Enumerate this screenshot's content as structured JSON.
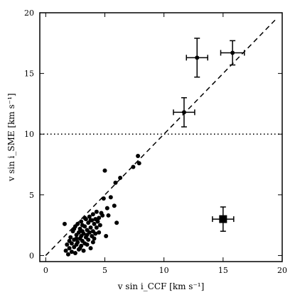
{
  "chart_data": {
    "type": "scatter",
    "title": "",
    "xlabel": "v sin i_CCF [km s⁻¹]",
    "ylabel": "v sin i_SME [km s⁻¹]",
    "xlim": [
      -0.5,
      20
    ],
    "ylim": [
      -0.5,
      20
    ],
    "x_ticks": [
      "0",
      "5",
      "10",
      "15",
      "20"
    ],
    "y_ticks": [
      "0",
      "5",
      "10",
      "15",
      "20"
    ],
    "grid": false,
    "legend": "none",
    "reference_lines": [
      {
        "kind": "one-to-one",
        "style": "dashed"
      },
      {
        "kind": "horizontal",
        "y": 10,
        "style": "dotted"
      }
    ],
    "colors": {
      "points": "#000000",
      "axes": "#000000"
    },
    "points": [
      {
        "x": 1.6,
        "y": 2.6
      },
      {
        "x": 1.7,
        "y": 0.4
      },
      {
        "x": 1.8,
        "y": 0.9
      },
      {
        "x": 1.9,
        "y": 0.1
      },
      {
        "x": 2.0,
        "y": 1.2
      },
      {
        "x": 2.0,
        "y": 0.6
      },
      {
        "x": 2.1,
        "y": 1.5
      },
      {
        "x": 2.2,
        "y": 0.3
      },
      {
        "x": 2.2,
        "y": 1.0
      },
      {
        "x": 2.3,
        "y": 2.0
      },
      {
        "x": 2.4,
        "y": 0.7
      },
      {
        "x": 2.4,
        "y": 1.3
      },
      {
        "x": 2.5,
        "y": 2.4
      },
      {
        "x": 2.5,
        "y": 0.2
      },
      {
        "x": 2.6,
        "y": 1.7
      },
      {
        "x": 2.6,
        "y": 0.9
      },
      {
        "x": 2.7,
        "y": 1.1
      },
      {
        "x": 2.7,
        "y": 2.6
      },
      {
        "x": 2.8,
        "y": 0.5
      },
      {
        "x": 2.8,
        "y": 1.9
      },
      {
        "x": 2.9,
        "y": 1.4
      },
      {
        "x": 2.9,
        "y": 2.2
      },
      {
        "x": 3.0,
        "y": 0.8
      },
      {
        "x": 3.0,
        "y": 1.6
      },
      {
        "x": 3.0,
        "y": 2.8
      },
      {
        "x": 3.1,
        "y": 1.2
      },
      {
        "x": 3.1,
        "y": 2.0
      },
      {
        "x": 3.2,
        "y": 1.8
      },
      {
        "x": 3.2,
        "y": 0.4
      },
      {
        "x": 3.3,
        "y": 2.4
      },
      {
        "x": 3.3,
        "y": 1.0
      },
      {
        "x": 3.4,
        "y": 3.0
      },
      {
        "x": 3.4,
        "y": 1.5
      },
      {
        "x": 3.5,
        "y": 2.1
      },
      {
        "x": 3.5,
        "y": 0.9
      },
      {
        "x": 3.6,
        "y": 2.7
      },
      {
        "x": 3.6,
        "y": 1.3
      },
      {
        "x": 3.7,
        "y": 3.2
      },
      {
        "x": 3.7,
        "y": 1.9
      },
      {
        "x": 3.8,
        "y": 2.3
      },
      {
        "x": 3.8,
        "y": 0.6
      },
      {
        "x": 3.9,
        "y": 2.9
      },
      {
        "x": 3.9,
        "y": 1.6
      },
      {
        "x": 4.0,
        "y": 3.4
      },
      {
        "x": 4.0,
        "y": 2.0
      },
      {
        "x": 4.0,
        "y": 1.1
      },
      {
        "x": 4.1,
        "y": 2.6
      },
      {
        "x": 4.2,
        "y": 3.0
      },
      {
        "x": 4.2,
        "y": 1.8
      },
      {
        "x": 4.3,
        "y": 3.6
      },
      {
        "x": 4.3,
        "y": 2.3
      },
      {
        "x": 4.4,
        "y": 2.8
      },
      {
        "x": 4.5,
        "y": 3.1
      },
      {
        "x": 4.5,
        "y": 1.9
      },
      {
        "x": 4.6,
        "y": 2.5
      },
      {
        "x": 4.7,
        "y": 3.5
      },
      {
        "x": 4.8,
        "y": 3.3
      },
      {
        "x": 4.9,
        "y": 4.7
      },
      {
        "x": 5.0,
        "y": 7.0
      },
      {
        "x": 5.1,
        "y": 1.6
      },
      {
        "x": 5.2,
        "y": 3.9
      },
      {
        "x": 5.3,
        "y": 3.3
      },
      {
        "x": 5.5,
        "y": 4.8
      },
      {
        "x": 5.8,
        "y": 4.1
      },
      {
        "x": 5.9,
        "y": 6.0
      },
      {
        "x": 6.0,
        "y": 2.7
      },
      {
        "x": 6.3,
        "y": 6.4
      },
      {
        "x": 7.4,
        "y": 7.3
      },
      {
        "x": 7.9,
        "y": 7.6
      },
      {
        "x": 7.8,
        "y": 8.2
      },
      {
        "x": 2.4,
        "y": 2.2
      },
      {
        "x": 3.1,
        "y": 2.5
      },
      {
        "x": 3.5,
        "y": 1.7
      },
      {
        "x": 2.9,
        "y": 0.6
      },
      {
        "x": 4.1,
        "y": 1.4
      },
      {
        "x": 3.3,
        "y": 3.1
      },
      {
        "x": 2.6,
        "y": 1.4
      },
      {
        "x": 3.8,
        "y": 2.9
      }
    ],
    "error_points": [
      {
        "x": 11.7,
        "y": 11.8,
        "xerr": 0.9,
        "yerr": 1.2,
        "marker": "circle"
      },
      {
        "x": 12.8,
        "y": 16.3,
        "xerr": 0.9,
        "yerr": 1.6,
        "marker": "circle"
      },
      {
        "x": 15.8,
        "y": 16.7,
        "xerr": 1.0,
        "yerr": 1.0,
        "marker": "circle"
      },
      {
        "x": 15.0,
        "y": 3.0,
        "xerr": 0.9,
        "yerr": 1.0,
        "marker": "square"
      }
    ]
  }
}
